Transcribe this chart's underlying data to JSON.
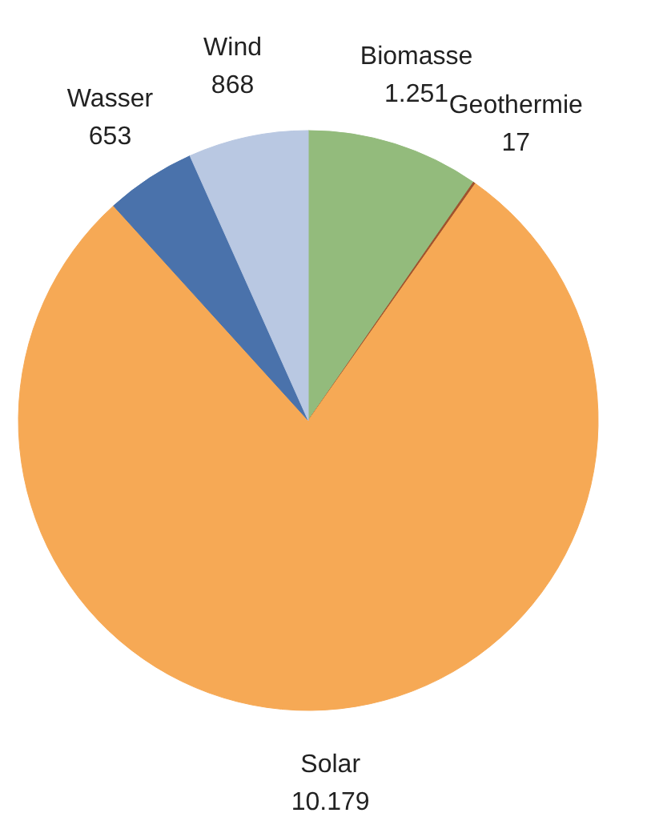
{
  "chart_data": {
    "type": "pie",
    "categories": [
      "Biomasse",
      "Geothermie",
      "Solar",
      "Wasser",
      "Wind"
    ],
    "values": [
      1251,
      17,
      10179,
      653,
      868
    ],
    "value_labels": [
      "1.251",
      "17",
      "10.179",
      "653",
      "868"
    ],
    "colors": [
      "#93bb7c",
      "#a0522d",
      "#f6a955",
      "#4a72ab",
      "#b9c8e2"
    ]
  }
}
